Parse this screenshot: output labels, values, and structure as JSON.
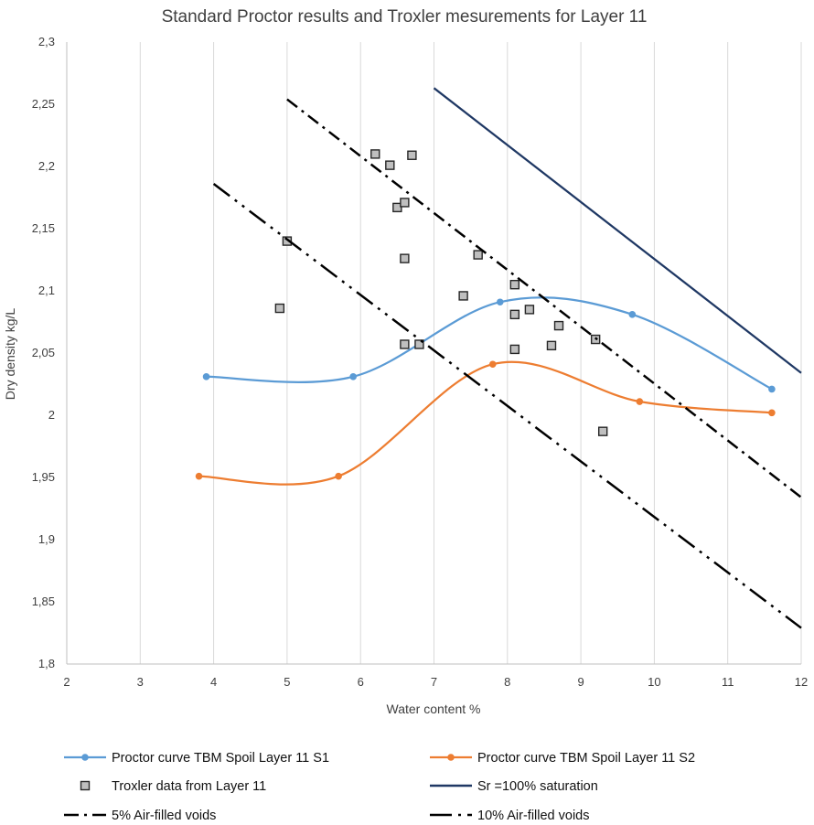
{
  "chart_data": {
    "type": "scatter",
    "title": "Standard Proctor results and Troxler mesurements for Layer 11",
    "xlabel": "Water content %",
    "ylabel": "Dry density kg/L",
    "xlim": [
      2,
      12
    ],
    "ylim": [
      1.8,
      2.3
    ],
    "x_ticks": [
      "2",
      "3",
      "4",
      "5",
      "6",
      "7",
      "8",
      "9",
      "10",
      "11",
      "12"
    ],
    "y_ticks": [
      "1,8",
      "1,85",
      "1,9",
      "1,95",
      "2",
      "2,05",
      "2,1",
      "2,15",
      "2,2",
      "2,25",
      "2,3"
    ],
    "grid": "vertical",
    "series": [
      {
        "name": "Proctor curve TBM Spoil Layer 11 S1",
        "kind": "smooth-line-markers",
        "color": "#5b9bd5",
        "points": [
          [
            3.9,
            2.031
          ],
          [
            5.9,
            2.031
          ],
          [
            7.9,
            2.091
          ],
          [
            9.7,
            2.081
          ],
          [
            11.6,
            2.021
          ]
        ]
      },
      {
        "name": "Proctor curve TBM Spoil Layer 11 S2",
        "kind": "smooth-line-markers",
        "color": "#ed7d31",
        "points": [
          [
            3.8,
            1.951
          ],
          [
            5.7,
            1.951
          ],
          [
            7.8,
            2.041
          ],
          [
            9.8,
            2.011
          ],
          [
            11.6,
            2.002
          ]
        ]
      },
      {
        "name": "Troxler data from Layer 11",
        "kind": "markers",
        "color": "#7f7f7f",
        "points": [
          [
            4.9,
            2.086
          ],
          [
            5.0,
            2.14
          ],
          [
            6.2,
            2.21
          ],
          [
            6.4,
            2.201
          ],
          [
            6.7,
            2.209
          ],
          [
            6.5,
            2.167
          ],
          [
            6.6,
            2.171
          ],
          [
            6.6,
            2.126
          ],
          [
            6.6,
            2.057
          ],
          [
            6.8,
            2.057
          ],
          [
            7.4,
            2.096
          ],
          [
            7.6,
            2.129
          ],
          [
            8.1,
            2.105
          ],
          [
            8.1,
            2.081
          ],
          [
            8.3,
            2.085
          ],
          [
            8.1,
            2.053
          ],
          [
            8.6,
            2.056
          ],
          [
            8.7,
            2.072
          ],
          [
            9.2,
            2.061
          ],
          [
            9.3,
            1.987
          ]
        ]
      },
      {
        "name": "Sr =100% saturation",
        "kind": "line",
        "color": "#1f3864",
        "points": [
          [
            7.0,
            2.263
          ],
          [
            12.0,
            2.034
          ]
        ]
      },
      {
        "name": "5% Air-filled voids",
        "kind": "dash-dot",
        "color": "#000000",
        "points": [
          [
            5.0,
            2.254
          ],
          [
            12.0,
            1.934
          ]
        ]
      },
      {
        "name": "10% Air-filled voids",
        "kind": "long-dash-dot",
        "color": "#000000",
        "points": [
          [
            4.0,
            2.186
          ],
          [
            12.0,
            1.829
          ]
        ]
      }
    ],
    "legend": [
      {
        "label": "Proctor curve TBM Spoil Layer 11 S1",
        "series": 0
      },
      {
        "label": "Proctor curve TBM Spoil Layer 11 S2",
        "series": 1
      },
      {
        "label": "Troxler data from Layer 11",
        "series": 2
      },
      {
        "label": "Sr =100% saturation",
        "series": 3
      },
      {
        "label": "5% Air-filled voids",
        "series": 4
      },
      {
        "label": "10% Air-filled voids",
        "series": 5
      }
    ],
    "legend_position": "bottom"
  }
}
